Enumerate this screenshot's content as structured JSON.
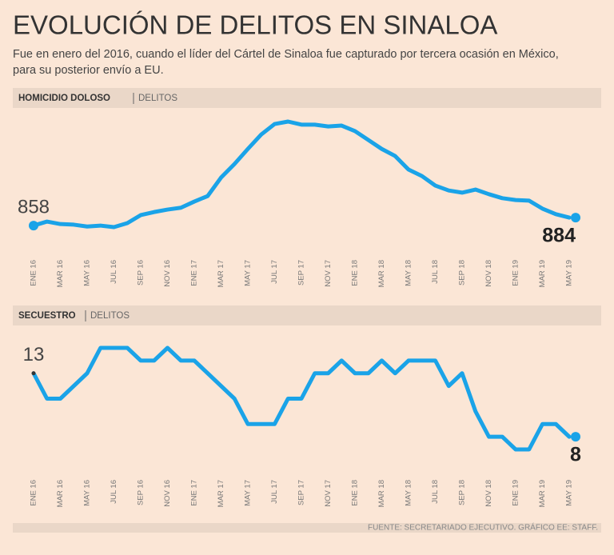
{
  "title": "EVOLUCIÓN DE DELITOS EN SINALOA",
  "subtitle": [
    "Fue en enero del 2016, cuando el líder del Cártel de Sinaloa fue capturado por tercera ocasión en México,",
    "para su posterior envío a EU."
  ],
  "source": "FUENTE: SECRETARIADO EJECUTIVO. GRÁFICO EE: STAFF.",
  "chart_data": [
    {
      "type": "line",
      "title": "HOMICIDIO DOLOSO",
      "label": "DELITOS",
      "color": "#1aa3e8",
      "categories": [
        "ENE 16",
        null,
        "MAR 16",
        null,
        "MAY 16",
        null,
        "JUL 16",
        null,
        "SEP 16",
        null,
        "NOV 16",
        null,
        "ENE 17",
        null,
        "MAR 17",
        null,
        "MAY 17",
        null,
        "JUL 17",
        null,
        "SEP 17",
        null,
        "NOV 17",
        null,
        "ENE 18",
        null,
        "MAR 18",
        null,
        "MAY 18",
        null,
        "JUL 18",
        null,
        "SEP 18",
        null,
        "NOV 18",
        null,
        "ENE 19",
        null,
        "MAR 19",
        null,
        "MAY 19"
      ],
      "values": [
        858,
        871,
        863,
        861,
        855,
        858,
        853,
        866,
        892,
        902,
        910,
        916,
        936,
        954,
        1014,
        1058,
        1107,
        1154,
        1188,
        1196,
        1186,
        1186,
        1180,
        1183,
        1165,
        1136,
        1107,
        1084,
        1040,
        1019,
        988,
        972,
        965,
        975,
        960,
        947,
        941,
        939,
        913,
        895,
        884
      ]
    },
    {
      "type": "line",
      "title": "SECUESTRO",
      "label": "DELITOS",
      "color": "#1aa3e8",
      "categories": [
        "ENE 16",
        null,
        "MAR 16",
        null,
        "MAY 16",
        null,
        "JUL 16",
        null,
        "SEP 16",
        null,
        "NOV 16",
        null,
        "ENE 17",
        null,
        "MAR 17",
        null,
        "MAY 17",
        null,
        "JUL 17",
        null,
        "SEP 17",
        null,
        "NOV 17",
        null,
        "ENE 18",
        null,
        "MAR 18",
        null,
        "MAY 18",
        null,
        "JUL 18",
        null,
        "SEP 18",
        null,
        "NOV 18",
        null,
        "ENE 19",
        null,
        "MAR 19",
        null,
        "MAY 19"
      ],
      "values": [
        13,
        11,
        11,
        12,
        13,
        15,
        15,
        15,
        14,
        14,
        15,
        14,
        14,
        13,
        12,
        11,
        9,
        9,
        9,
        11,
        11,
        13,
        13,
        14,
        13,
        13,
        14,
        13,
        14,
        14,
        14,
        12,
        13,
        10,
        8,
        8,
        7,
        7,
        9,
        9,
        8
      ]
    }
  ]
}
